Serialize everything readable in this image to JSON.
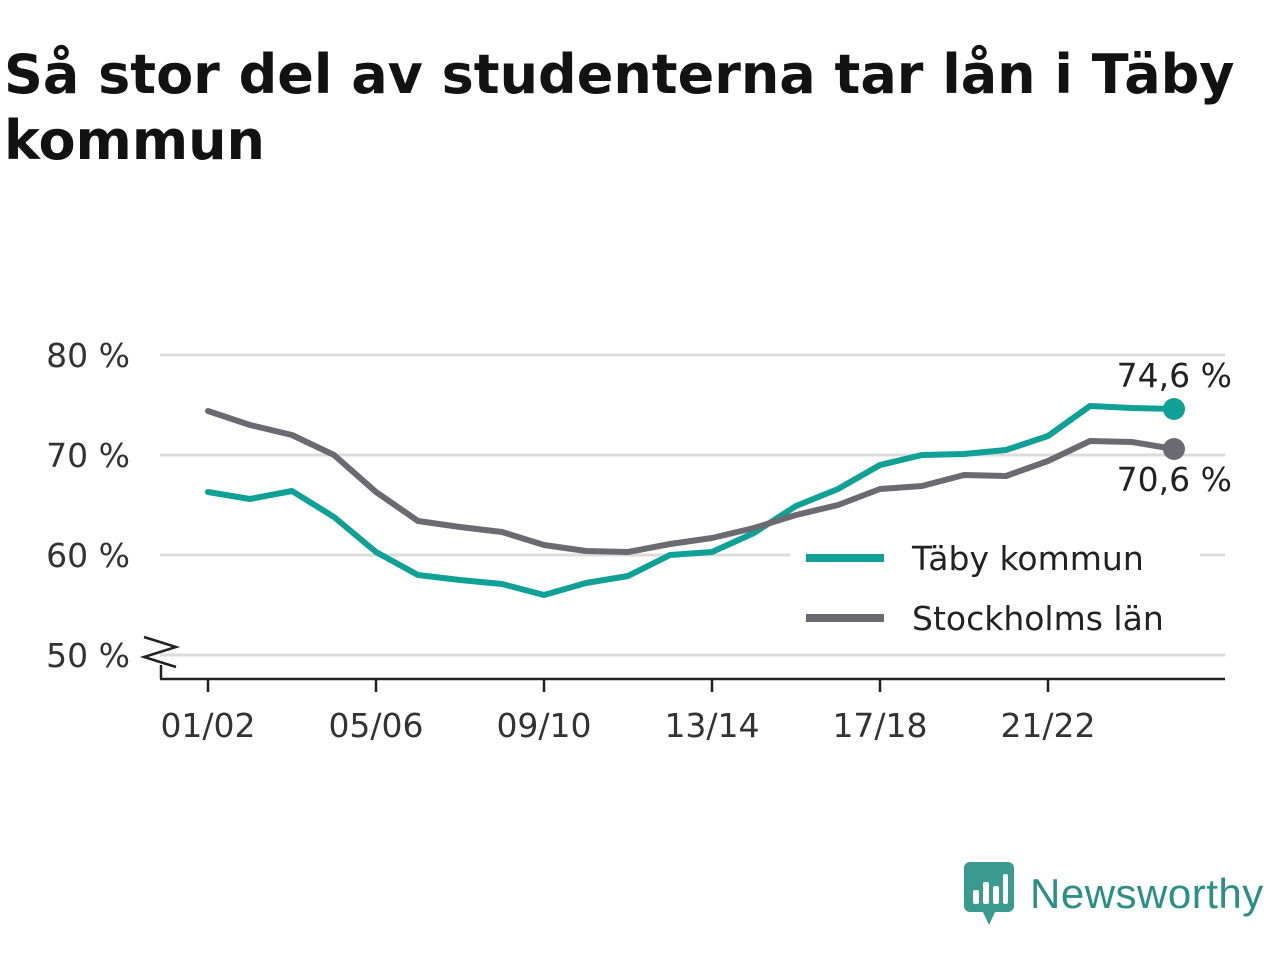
{
  "header": {
    "title": "Så stor del av studenterna tar lån i Täby kommun"
  },
  "brand": {
    "name": "Newsworthy",
    "icon": "newsworthy-logo-icon",
    "color": "#3a9a8f"
  },
  "chart_data": {
    "type": "line",
    "title": "Så stor del av studenterna tar lån i Täby kommun",
    "xlabel": "",
    "ylabel": "",
    "ylim": [
      50,
      80
    ],
    "y_ticks": [
      "50 %",
      "60 %",
      "70 %",
      "80 %"
    ],
    "y_tick_values": [
      50,
      60,
      70,
      80
    ],
    "y_axis_break": true,
    "grid": "horizontal",
    "legend_position": "bottom-right",
    "categories": [
      "01/02",
      "02/03",
      "03/04",
      "04/05",
      "05/06",
      "06/07",
      "07/08",
      "08/09",
      "09/10",
      "10/11",
      "11/12",
      "12/13",
      "13/14",
      "14/15",
      "15/16",
      "16/17",
      "17/18",
      "18/19",
      "19/20",
      "20/21",
      "21/22",
      "22/23",
      "23/24",
      "24/25"
    ],
    "x_tick_labels": [
      "01/02",
      "05/06",
      "09/10",
      "13/14",
      "17/18",
      "21/22"
    ],
    "series": [
      {
        "name": "Täby kommun",
        "color": "#0fa195",
        "values": [
          66.3,
          65.6,
          66.4,
          63.8,
          60.3,
          58.0,
          57.5,
          57.1,
          56.0,
          57.2,
          57.9,
          60.0,
          60.3,
          62.2,
          64.9,
          66.6,
          69.0,
          70.0,
          70.1,
          70.5,
          71.9,
          74.9,
          74.7,
          74.6
        ],
        "end_label": "74,6 %"
      },
      {
        "name": "Stockholms län",
        "color": "#6b6a72",
        "values": [
          74.4,
          73.0,
          72.0,
          70.0,
          66.3,
          63.4,
          62.8,
          62.3,
          61.0,
          60.4,
          60.3,
          61.1,
          61.7,
          62.7,
          64.0,
          65.0,
          66.6,
          66.9,
          68.0,
          67.9,
          69.4,
          71.4,
          71.3,
          70.6
        ],
        "end_label": "70,6 %"
      }
    ]
  }
}
